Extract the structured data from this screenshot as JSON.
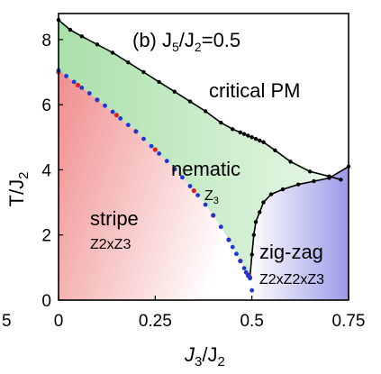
{
  "chart_data": {
    "type": "line",
    "title": "(b) J5/J2=0.5",
    "title_parts": {
      "prefix": "(b) J",
      "sub1": "5",
      "mid": "/J",
      "sub2": "2",
      "suffix": "=0.5"
    },
    "xlabel": {
      "main": "J",
      "sub1": "3",
      "mid": "/J",
      "sub2": "2"
    },
    "ylabel": {
      "main": "T/J",
      "sub": "2"
    },
    "xlim": [
      0,
      0.75
    ],
    "ylim": [
      0,
      8.8
    ],
    "x_ticks": [
      "0",
      "0.25",
      "0.5",
      "0.75"
    ],
    "x_tick_values": [
      0,
      0.25,
      0.5,
      0.75
    ],
    "y_ticks": [
      "0",
      "2",
      "4",
      "6",
      "8"
    ],
    "y_tick_values": [
      0,
      2,
      4,
      6,
      8
    ],
    "left_clipped_label": "5",
    "regions": [
      {
        "name": "critical PM",
        "sub": ""
      },
      {
        "name": "nematic",
        "sub": "Z3",
        "sub_main": "Z",
        "sub_index": "3"
      },
      {
        "name": "stripe",
        "sub": "Z2xZ3"
      },
      {
        "name": "zig-zag",
        "sub": "Z2xZ2xZ3"
      }
    ],
    "colors": {
      "stripe": "#f2a0a0",
      "nematic": "#c6ecc6",
      "zigzag": "#b8b8ee",
      "upper_boundary": "#000000",
      "lower_blue": "#1f35d6",
      "lower_red": "#e02020"
    },
    "series": [
      {
        "role": "upper-boundary",
        "x": [
          0.0,
          0.03,
          0.06,
          0.1,
          0.14,
          0.18,
          0.22,
          0.26,
          0.3,
          0.34,
          0.38,
          0.42,
          0.45,
          0.47,
          0.48,
          0.49,
          0.5,
          0.51,
          0.52,
          0.53,
          0.56,
          0.6,
          0.65,
          0.7,
          0.73
        ],
        "y": [
          8.6,
          8.3,
          8.1,
          7.85,
          7.6,
          7.3,
          7.0,
          6.7,
          6.4,
          6.1,
          5.8,
          5.45,
          5.25,
          5.15,
          5.1,
          5.05,
          5.0,
          4.95,
          4.9,
          4.85,
          4.6,
          4.25,
          3.95,
          3.8,
          3.7
        ]
      },
      {
        "role": "zigzag-boundary",
        "x": [
          0.495,
          0.5,
          0.505,
          0.51,
          0.52,
          0.53,
          0.55,
          0.58,
          0.62,
          0.66,
          0.7,
          0.75
        ],
        "y": [
          0.7,
          1.4,
          2.0,
          2.4,
          2.7,
          3.0,
          3.25,
          3.4,
          3.55,
          3.65,
          3.75,
          4.1
        ]
      },
      {
        "role": "stripe-boundary-blue",
        "x": [
          0.0,
          0.02,
          0.04,
          0.06,
          0.08,
          0.1,
          0.12,
          0.14,
          0.16,
          0.18,
          0.2,
          0.22,
          0.24,
          0.26,
          0.28,
          0.3,
          0.32,
          0.34,
          0.36,
          0.38,
          0.4,
          0.42,
          0.44,
          0.45,
          0.46,
          0.47,
          0.48,
          0.485,
          0.49,
          0.495,
          0.5
        ],
        "y": [
          7.05,
          6.88,
          6.7,
          6.52,
          6.35,
          6.15,
          5.97,
          5.78,
          5.58,
          5.38,
          5.18,
          4.95,
          4.73,
          4.5,
          4.27,
          4.02,
          3.77,
          3.5,
          3.22,
          2.93,
          2.6,
          2.25,
          1.85,
          1.63,
          1.42,
          1.2,
          0.98,
          0.85,
          0.75,
          0.67,
          0.3
        ]
      },
      {
        "role": "stripe-boundary-red",
        "x": [
          0.0,
          0.05,
          0.1,
          0.15,
          0.2,
          0.25,
          0.3,
          0.35,
          0.4,
          0.44,
          0.47,
          0.49,
          0.495
        ],
        "y": [
          7.0,
          6.6,
          6.15,
          5.68,
          5.18,
          4.62,
          4.02,
          3.36,
          2.6,
          1.85,
          1.2,
          0.78,
          0.7
        ]
      }
    ]
  }
}
